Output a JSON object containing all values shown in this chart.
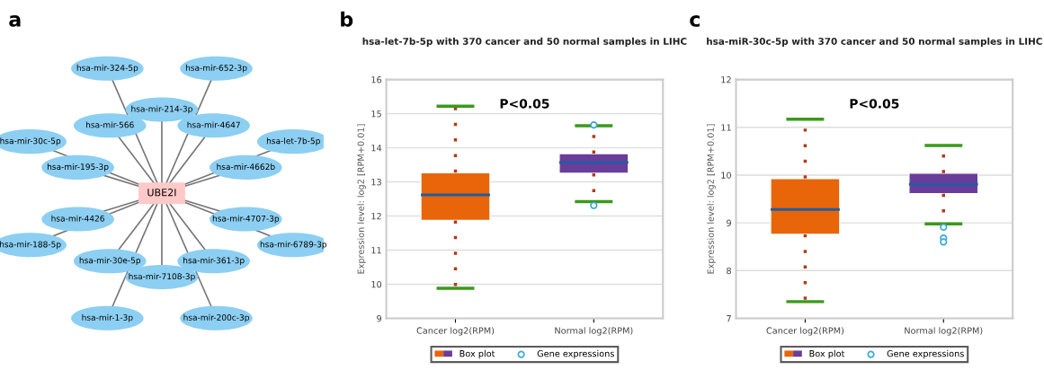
{
  "chart_data": [
    {
      "type": "other",
      "title": "a",
      "annotations": [
        "UBE2I",
        "hsa-mir-324-5p",
        "hsa-mir-652-3p",
        "hsa-let-7b-5p",
        "hsa-mir-6789-3p",
        "hsa-mir-200c-3p",
        "hsa-mir-1-3p",
        "hsa-mir-188-5p",
        "hsa-mir-30c-5p",
        "hsa-mir-214-3p",
        "hsa-mir-4647",
        "hsa-mir-4662b",
        "hsa-mir-4707-3p",
        "hsa-mir-361-3p",
        "hsa-mir-7108-3p",
        "hsa-mir-30e-5p",
        "hsa-mir-4426",
        "hsa-mir-195-3p",
        "hsa-mir-566"
      ]
    },
    {
      "type": "box",
      "title": "hsa-let-7b-5p with 370 cancer and 50 normal samples in LIHC",
      "ylabel": "Expression level: log2 [RPM+0.01]",
      "categories": [
        "Cancer log2(RPM)",
        "Normal log2(RPM)"
      ],
      "ylim": [
        9,
        16
      ],
      "yticks": [
        9,
        10,
        11,
        12,
        13,
        14,
        15,
        16
      ],
      "grid": "y",
      "legend": "bottom",
      "annotations": [
        "b",
        "P<0.05"
      ],
      "series": [
        {
          "name": "Box plot",
          "type": "box",
          "colors": [
            "#e8650a",
            "#6a3d9a"
          ],
          "boxes": [
            {
              "low": 9.88,
              "q1": 11.87,
              "median": 12.62,
              "q3": 13.27,
              "high": 15.22
            },
            {
              "low": 12.42,
              "q1": 13.25,
              "median": 13.57,
              "q3": 13.83,
              "high": 14.65
            }
          ]
        },
        {
          "name": "Gene expressions",
          "type": "scatter",
          "color": "#3aa8d8",
          "marker": "circle",
          "x": [
            "Normal log2(RPM)",
            "Normal log2(RPM)"
          ],
          "values": [
            14.67,
            12.31
          ]
        }
      ]
    },
    {
      "type": "box",
      "title": "hsa-miR-30c-5p with 370 cancer and 50 normal samples in LIHC",
      "ylabel": "Expression level: log2 [RPM+0.01]",
      "categories": [
        "Cancer log2(RPM)",
        "Normal log2(RPM)"
      ],
      "ylim": [
        7,
        12
      ],
      "yticks": [
        7,
        8,
        9,
        10,
        11,
        12
      ],
      "grid": "y",
      "legend": "bottom",
      "annotations": [
        "c",
        "P<0.05"
      ],
      "series": [
        {
          "name": "Box plot",
          "type": "box",
          "colors": [
            "#e8650a",
            "#6a3d9a"
          ],
          "boxes": [
            {
              "low": 7.35,
              "q1": 8.76,
              "median": 9.28,
              "q3": 9.93,
              "high": 11.17
            },
            {
              "low": 8.98,
              "q1": 9.61,
              "median": 9.81,
              "q3": 10.04,
              "high": 10.62
            }
          ]
        },
        {
          "name": "Gene expressions",
          "type": "scatter",
          "color": "#3aa8d8",
          "marker": "circle",
          "x": [
            "Normal log2(RPM)",
            "Normal log2(RPM)",
            "Normal log2(RPM)"
          ],
          "values": [
            8.91,
            8.68,
            8.6
          ]
        }
      ]
    }
  ]
}
